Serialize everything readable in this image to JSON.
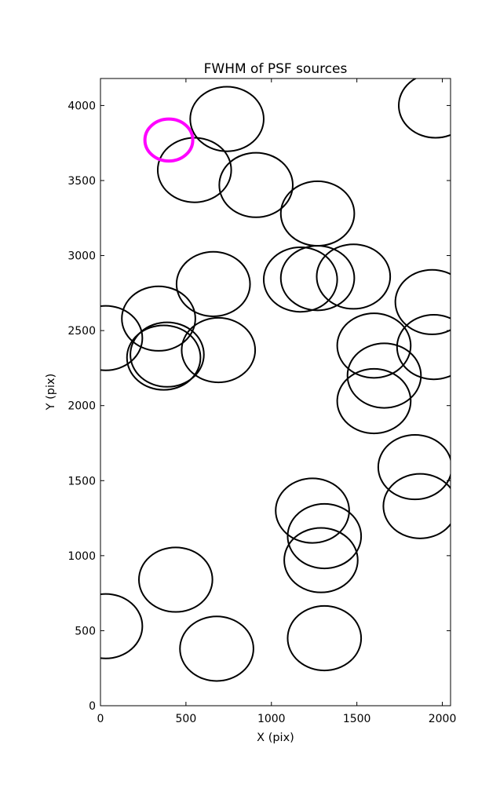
{
  "chart_data": {
    "type": "scatter",
    "marker": "circle",
    "title": "FWHM of PSF sources",
    "xlabel": "X (pix)",
    "ylabel": "Y (pix)",
    "xlim": [
      0,
      2048
    ],
    "ylim": [
      0,
      4180
    ],
    "xticks": [
      0,
      500,
      1000,
      1500,
      2000
    ],
    "yticks": [
      0,
      500,
      1000,
      1500,
      2000,
      2500,
      3000,
      3500,
      4000
    ],
    "grid": false,
    "colors": {
      "default": "#000000",
      "highlight": "#ff00ff"
    },
    "series": [
      {
        "color": "#000000",
        "radius": 215,
        "points": [
          {
            "x": 740,
            "y": 3910
          },
          {
            "x": 550,
            "y": 3570
          },
          {
            "x": 910,
            "y": 3470
          },
          {
            "x": 1270,
            "y": 3280
          },
          {
            "x": 1960,
            "y": 4000
          },
          {
            "x": 660,
            "y": 2810
          },
          {
            "x": 1170,
            "y": 2840
          },
          {
            "x": 1270,
            "y": 2850
          },
          {
            "x": 1480,
            "y": 2860
          },
          {
            "x": 1940,
            "y": 2690
          },
          {
            "x": 340,
            "y": 2580
          },
          {
            "x": 30,
            "y": 2450
          },
          {
            "x": 690,
            "y": 2370
          },
          {
            "x": 370,
            "y": 2320
          },
          {
            "x": 390,
            "y": 2340
          },
          {
            "x": 1600,
            "y": 2400
          },
          {
            "x": 1950,
            "y": 2390
          },
          {
            "x": 1660,
            "y": 2200
          },
          {
            "x": 1600,
            "y": 2030
          },
          {
            "x": 1840,
            "y": 1590
          },
          {
            "x": 1870,
            "y": 1330
          },
          {
            "x": 1240,
            "y": 1300
          },
          {
            "x": 1310,
            "y": 1130
          },
          {
            "x": 1290,
            "y": 970
          },
          {
            "x": 440,
            "y": 840
          },
          {
            "x": 30,
            "y": 530
          },
          {
            "x": 680,
            "y": 380
          },
          {
            "x": 1310,
            "y": 450
          }
        ]
      },
      {
        "color": "#ff00ff",
        "radius": 140,
        "points": [
          {
            "x": 400,
            "y": 3770
          }
        ]
      }
    ]
  }
}
